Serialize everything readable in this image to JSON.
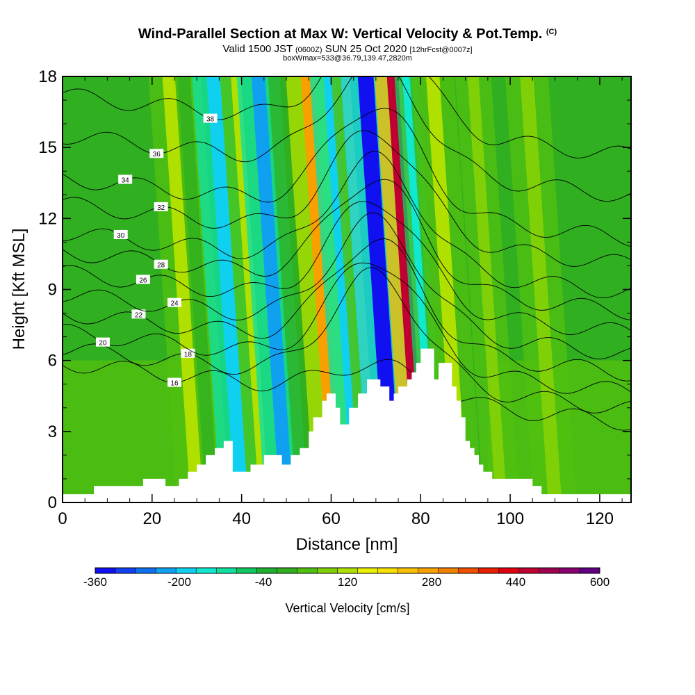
{
  "title": {
    "main": "Wind-Parallel Section at Max W: Vertical Velocity & Pot.Temp.",
    "main_suffix": "(C)",
    "valid_prefix": "Valid 1500 JST",
    "valid_zulu": "(0600Z)",
    "valid_date": "SUN 25 Oct 2020",
    "forecast": "[12hrFcst@0007z]",
    "box_info": "boxWmax=533@36.79,139.47,2820m"
  },
  "chart_data": {
    "type": "heatmap",
    "xlabel": "Distance [nm]",
    "ylabel": "Height [Kft MSL]",
    "xlim": [
      0,
      127
    ],
    "ylim": [
      0,
      18
    ],
    "x_ticks": [
      0,
      20,
      40,
      60,
      80,
      100,
      120
    ],
    "y_ticks": [
      0,
      3,
      6,
      9,
      12,
      15,
      18
    ],
    "colorbar": {
      "label": "Vertical Velocity [cm/s]",
      "min": -360,
      "max": 600,
      "step": 40,
      "tick_labels": [
        -360,
        -200,
        -40,
        120,
        280,
        440,
        600
      ],
      "colors": [
        "#1010f0",
        "#1040f0",
        "#1070f0",
        "#10a0f0",
        "#10d0f0",
        "#10e8d0",
        "#10e0a0",
        "#10c860",
        "#20b030",
        "#30b020",
        "#50c010",
        "#80d008",
        "#b0e000",
        "#e8f000",
        "#f8e000",
        "#f8c000",
        "#f8a000",
        "#f08000",
        "#f05000",
        "#e82000",
        "#e00010",
        "#c00030",
        "#a00050",
        "#8a0070",
        "#600080"
      ]
    },
    "velocity_columns": [
      {
        "x": 30,
        "w": 2.8,
        "value": 140
      },
      {
        "x": 36,
        "w": 2.5,
        "value": 60
      },
      {
        "x": 40,
        "w": 3.0,
        "value": -200
      },
      {
        "x": 45,
        "w": 2.2,
        "value": 120
      },
      {
        "x": 50,
        "w": 3.0,
        "value": -220
      },
      {
        "x": 57,
        "w": 3.0,
        "value": 20
      },
      {
        "x": 61,
        "w": 3.0,
        "value": 300
      },
      {
        "x": 66,
        "w": 2.8,
        "value": -180
      },
      {
        "x": 69.5,
        "w": 2.0,
        "value": 120
      },
      {
        "x": 74,
        "w": 3.5,
        "value": -330
      },
      {
        "x": 80,
        "w": 2.5,
        "value": 480
      },
      {
        "x": 83,
        "w": 1.6,
        "value": -160
      },
      {
        "x": 89,
        "w": 3.0,
        "value": 120
      },
      {
        "x": 98,
        "w": 2.5,
        "value": 100
      },
      {
        "x": 110,
        "w": 3.0,
        "value": 80
      }
    ],
    "terrain": [
      [
        0,
        0.35
      ],
      [
        7,
        0.35
      ],
      [
        7,
        0.7
      ],
      [
        18,
        0.7
      ],
      [
        18,
        1.0
      ],
      [
        23,
        1.0
      ],
      [
        23,
        0.7
      ],
      [
        26,
        0.7
      ],
      [
        26,
        1.0
      ],
      [
        28,
        1.0
      ],
      [
        28,
        1.3
      ],
      [
        30,
        1.3
      ],
      [
        30,
        1.6
      ],
      [
        32,
        1.6
      ],
      [
        32,
        2.0
      ],
      [
        34,
        2.0
      ],
      [
        34,
        2.3
      ],
      [
        36,
        2.3
      ],
      [
        36,
        2.6
      ],
      [
        38,
        2.6
      ],
      [
        38,
        1.3
      ],
      [
        42,
        1.3
      ],
      [
        42,
        1.6
      ],
      [
        45,
        1.6
      ],
      [
        45,
        2.0
      ],
      [
        49,
        2.0
      ],
      [
        49,
        1.6
      ],
      [
        51,
        1.6
      ],
      [
        51,
        2.0
      ],
      [
        53,
        2.0
      ],
      [
        53,
        2.3
      ],
      [
        55,
        2.3
      ],
      [
        55,
        3.0
      ],
      [
        56,
        3.0
      ],
      [
        56,
        3.6
      ],
      [
        58,
        3.6
      ],
      [
        58,
        4.3
      ],
      [
        59,
        4.3
      ],
      [
        59,
        4.6
      ],
      [
        61,
        4.6
      ],
      [
        61,
        4.0
      ],
      [
        62,
        4.0
      ],
      [
        62,
        3.3
      ],
      [
        64,
        3.3
      ],
      [
        64,
        4.0
      ],
      [
        66,
        4.0
      ],
      [
        66,
        4.6
      ],
      [
        68,
        4.6
      ],
      [
        68,
        5.2
      ],
      [
        71,
        5.2
      ],
      [
        71,
        4.9
      ],
      [
        73,
        4.9
      ],
      [
        73,
        4.3
      ],
      [
        74,
        4.3
      ],
      [
        74,
        4.6
      ],
      [
        75,
        4.6
      ],
      [
        75,
        4.9
      ],
      [
        77,
        4.9
      ],
      [
        77,
        5.2
      ],
      [
        78,
        5.2
      ],
      [
        78,
        5.5
      ],
      [
        79,
        5.5
      ],
      [
        79,
        5.9
      ],
      [
        80,
        5.9
      ],
      [
        80,
        6.5
      ],
      [
        83,
        6.5
      ],
      [
        83,
        5.2
      ],
      [
        84,
        5.2
      ],
      [
        84,
        5.9
      ],
      [
        87,
        5.9
      ],
      [
        87,
        4.9
      ],
      [
        88,
        4.9
      ],
      [
        88,
        4.3
      ],
      [
        89,
        4.3
      ],
      [
        89,
        3.6
      ],
      [
        90,
        3.6
      ],
      [
        90,
        2.6
      ],
      [
        91,
        2.6
      ],
      [
        91,
        2.3
      ],
      [
        92,
        2.3
      ],
      [
        92,
        2.0
      ],
      [
        93,
        2.0
      ],
      [
        93,
        1.6
      ],
      [
        94,
        1.6
      ],
      [
        94,
        1.3
      ],
      [
        96,
        1.3
      ],
      [
        96,
        1.0
      ],
      [
        105,
        1.0
      ],
      [
        105,
        0.7
      ],
      [
        107,
        0.7
      ],
      [
        107,
        0.35
      ],
      [
        127,
        0.35
      ]
    ],
    "theta_contours": [
      {
        "value": 16,
        "h": 5.9,
        "label_x": 25
      },
      {
        "value": 18,
        "h": 6.5,
        "label_x": 28
      },
      {
        "value": 20,
        "h": 7.2,
        "label_x": 9
      },
      {
        "value": 22,
        "h": 8.0,
        "label_x": 17
      },
      {
        "value": 24,
        "h": 8.8,
        "label_x": 25
      },
      {
        "value": 26,
        "h": 9.7,
        "label_x": 18
      },
      {
        "value": 28,
        "h": 10.6,
        "label_x": 22
      },
      {
        "value": 30,
        "h": 11.4,
        "label_x": 13
      },
      {
        "value": 32,
        "h": 12.6,
        "label_x": 22
      },
      {
        "value": 34,
        "h": 13.7,
        "label_x": 14
      },
      {
        "value": 36,
        "h": 15.5,
        "label_x": 21
      },
      {
        "value": 38,
        "h": 17.2,
        "label_x": 33
      }
    ]
  }
}
